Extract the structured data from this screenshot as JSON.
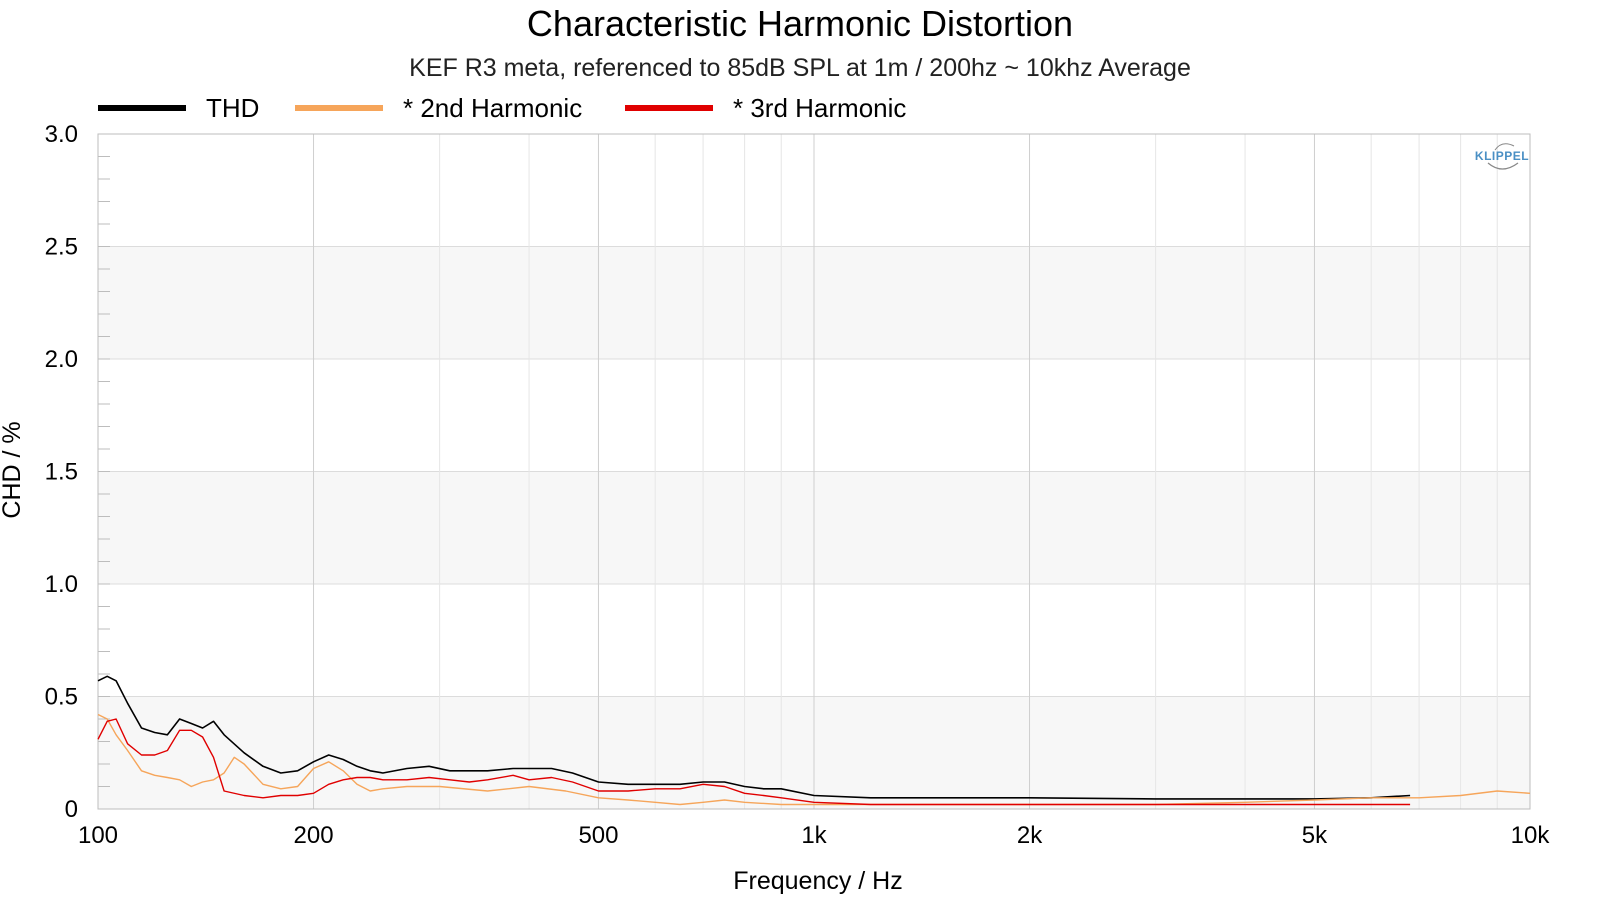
{
  "chart_data": {
    "type": "line",
    "title": "Characteristic Harmonic Distortion",
    "subtitle": "KEF R3 meta, referenced to 85dB SPL at 1m / 200hz ~ 10khz Average",
    "xlabel": "Frequency / Hz",
    "ylabel": "CHD / %",
    "xscale": "log",
    "xlim": [
      100,
      10000
    ],
    "ylim": [
      0,
      3.0
    ],
    "x_ticks": [
      100,
      200,
      500,
      1000,
      2000,
      5000,
      10000
    ],
    "x_tick_labels": [
      "100",
      "200",
      "500",
      "1k",
      "2k",
      "5k",
      "10k"
    ],
    "y_ticks": [
      0,
      0.5,
      1.0,
      1.5,
      2.0,
      2.5,
      3.0
    ],
    "y_tick_labels": [
      "0",
      "0.5",
      "1.0",
      "1.5",
      "2.0",
      "2.5",
      "3.0"
    ],
    "grid": true,
    "legend": "top-left",
    "logo": "KLIPPEL",
    "series": [
      {
        "name": "THD",
        "color": "#000000",
        "x": [
          100,
          103,
          106,
          110,
          115,
          120,
          125,
          130,
          135,
          140,
          145,
          150,
          160,
          170,
          180,
          190,
          200,
          210,
          220,
          230,
          240,
          250,
          270,
          290,
          310,
          330,
          350,
          380,
          400,
          430,
          460,
          500,
          550,
          600,
          650,
          700,
          750,
          800,
          850,
          900,
          1000,
          1200,
          1500,
          2000,
          3000,
          4000,
          5000,
          6000,
          6800
        ],
        "y": [
          0.57,
          0.59,
          0.57,
          0.47,
          0.36,
          0.34,
          0.33,
          0.4,
          0.38,
          0.36,
          0.39,
          0.33,
          0.25,
          0.19,
          0.16,
          0.17,
          0.21,
          0.24,
          0.22,
          0.19,
          0.17,
          0.16,
          0.18,
          0.19,
          0.17,
          0.17,
          0.17,
          0.18,
          0.18,
          0.18,
          0.16,
          0.12,
          0.11,
          0.11,
          0.11,
          0.12,
          0.12,
          0.1,
          0.09,
          0.09,
          0.06,
          0.05,
          0.05,
          0.05,
          0.045,
          0.045,
          0.045,
          0.05,
          0.06
        ]
      },
      {
        "name": "* 2nd Harmonic",
        "color": "#f6a55a",
        "x": [
          100,
          103,
          106,
          110,
          115,
          120,
          125,
          130,
          135,
          140,
          145,
          150,
          155,
          160,
          170,
          180,
          190,
          200,
          210,
          220,
          230,
          240,
          250,
          270,
          300,
          350,
          400,
          450,
          500,
          550,
          600,
          650,
          700,
          750,
          800,
          900,
          1000,
          1200,
          1500,
          2000,
          3000,
          4000,
          5000,
          6000,
          7000,
          8000,
          9000,
          10000
        ],
        "y": [
          0.42,
          0.4,
          0.33,
          0.26,
          0.17,
          0.15,
          0.14,
          0.13,
          0.1,
          0.12,
          0.13,
          0.16,
          0.23,
          0.2,
          0.11,
          0.09,
          0.1,
          0.18,
          0.21,
          0.17,
          0.11,
          0.08,
          0.09,
          0.1,
          0.1,
          0.08,
          0.1,
          0.08,
          0.05,
          0.04,
          0.03,
          0.02,
          0.03,
          0.04,
          0.03,
          0.02,
          0.02,
          0.02,
          0.02,
          0.02,
          0.02,
          0.03,
          0.04,
          0.05,
          0.05,
          0.06,
          0.08,
          0.07
        ]
      },
      {
        "name": "* 3rd Harmonic",
        "color": "#e00000",
        "x": [
          100,
          103,
          106,
          110,
          115,
          120,
          125,
          130,
          135,
          140,
          145,
          150,
          160,
          170,
          180,
          190,
          200,
          210,
          220,
          230,
          240,
          250,
          270,
          290,
          310,
          330,
          350,
          380,
          400,
          430,
          460,
          500,
          550,
          600,
          650,
          700,
          750,
          800,
          850,
          900,
          1000,
          1200,
          1500,
          2000,
          3000,
          4000,
          5000,
          6000,
          6800
        ],
        "y": [
          0.31,
          0.39,
          0.4,
          0.29,
          0.24,
          0.24,
          0.26,
          0.35,
          0.35,
          0.32,
          0.23,
          0.08,
          0.06,
          0.05,
          0.06,
          0.06,
          0.07,
          0.11,
          0.13,
          0.14,
          0.14,
          0.13,
          0.13,
          0.14,
          0.13,
          0.12,
          0.13,
          0.15,
          0.13,
          0.14,
          0.12,
          0.08,
          0.08,
          0.09,
          0.09,
          0.11,
          0.1,
          0.07,
          0.06,
          0.05,
          0.03,
          0.02,
          0.02,
          0.02,
          0.02,
          0.02,
          0.02,
          0.02,
          0.02
        ]
      }
    ]
  }
}
